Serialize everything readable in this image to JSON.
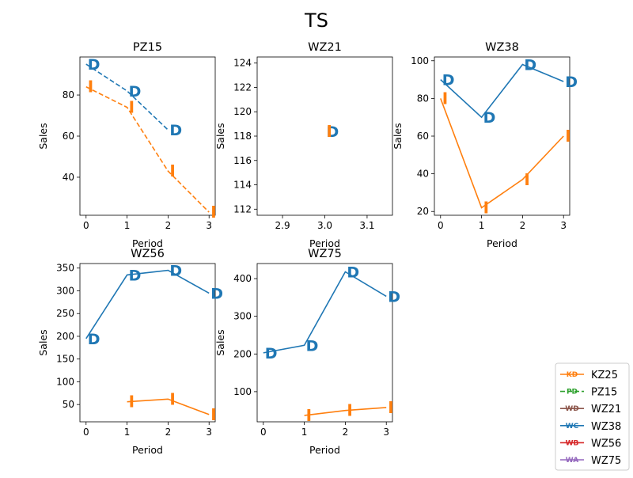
{
  "title": "TS",
  "colors": {
    "D": "#1f77b4",
    "I": "#ff7f0e"
  },
  "chart_data": [
    {
      "type": "line",
      "title": "PZ15",
      "xlabel": "Period",
      "ylabel": "Sales",
      "xlim": [
        -0.15,
        3.15
      ],
      "ylim": [
        21.5,
        98.5
      ],
      "xticks": [
        0,
        1,
        2,
        3
      ],
      "yticks": [
        40,
        60,
        80
      ],
      "line_style": "dashed",
      "series": [
        {
          "marker": "D",
          "x": [
            0,
            1,
            2
          ],
          "y": [
            95,
            82,
            63
          ]
        },
        {
          "marker": "I",
          "x": [
            0,
            1,
            2,
            3
          ],
          "y": [
            84,
            74,
            43,
            23
          ]
        }
      ]
    },
    {
      "type": "line",
      "title": "WZ21",
      "xlabel": "Period",
      "ylabel": "Sales",
      "xlim": [
        2.84,
        3.16
      ],
      "ylim": [
        111.5,
        124.5
      ],
      "xticks": [
        2.9,
        3.0,
        3.1
      ],
      "xtick_labels": [
        "2.9",
        "3.0",
        "3.1"
      ],
      "yticks": [
        112,
        114,
        116,
        118,
        120,
        122,
        124
      ],
      "line_style": "solid",
      "series": [
        {
          "marker": "D",
          "x": [
            3
          ],
          "y": [
            118.4
          ]
        },
        {
          "marker": "I",
          "x": [
            3
          ],
          "y": [
            118.4
          ]
        }
      ]
    },
    {
      "type": "line",
      "title": "WZ38",
      "xlabel": "Period",
      "ylabel": "Sales",
      "xlim": [
        -0.15,
        3.15
      ],
      "ylim": [
        18,
        102
      ],
      "xticks": [
        0,
        1,
        2,
        3
      ],
      "yticks": [
        20,
        40,
        60,
        80,
        100
      ],
      "line_style": "solid",
      "series": [
        {
          "marker": "D",
          "x": [
            0,
            1,
            2,
            3
          ],
          "y": [
            90,
            70,
            98,
            89
          ]
        },
        {
          "marker": "I",
          "x": [
            0,
            1,
            2,
            3
          ],
          "y": [
            80,
            22,
            37,
            60
          ]
        }
      ]
    },
    {
      "type": "line",
      "title": "WZ56",
      "xlabel": "Period",
      "ylabel": "Sales",
      "xlim": [
        -0.15,
        3.15
      ],
      "ylim": [
        12,
        360
      ],
      "xticks": [
        0,
        1,
        2,
        3
      ],
      "yticks": [
        50,
        100,
        150,
        200,
        250,
        300,
        350
      ],
      "line_style": "solid",
      "series": [
        {
          "marker": "D",
          "x": [
            0,
            1,
            2,
            3
          ],
          "y": [
            195,
            335,
            345,
            295
          ]
        },
        {
          "marker": "I",
          "x": [
            1,
            2,
            3
          ],
          "y": [
            56,
            62,
            28
          ]
        }
      ]
    },
    {
      "type": "line",
      "title": "WZ75",
      "xlabel": "Period",
      "ylabel": "Sales",
      "xlim": [
        -0.15,
        3.15
      ],
      "ylim": [
        20,
        440
      ],
      "xticks": [
        0,
        1,
        2,
        3
      ],
      "yticks": [
        100,
        200,
        300,
        400
      ],
      "line_style": "solid",
      "series": [
        {
          "marker": "D",
          "x": [
            0,
            1,
            2,
            3
          ],
          "y": [
            203,
            223,
            418,
            353
          ]
        },
        {
          "marker": "I",
          "x": [
            1,
            2,
            3
          ],
          "y": [
            37,
            50,
            58
          ]
        }
      ]
    }
  ],
  "legend": {
    "placement": "bottom-right",
    "entries": [
      {
        "label": "KZ25",
        "color": "#ff7f0e",
        "style": "solid",
        "icon": "KD"
      },
      {
        "label": "PZ15",
        "color": "#2ca02c",
        "style": "dashed",
        "icon": "PD"
      },
      {
        "label": "WZ21",
        "color": "#8c564b",
        "style": "solid",
        "icon": "WD"
      },
      {
        "label": "WZ38",
        "color": "#1f77b4",
        "style": "solid",
        "icon": "WC"
      },
      {
        "label": "WZ56",
        "color": "#d62728",
        "style": "solid",
        "icon": "WB"
      },
      {
        "label": "WZ75",
        "color": "#9467bd",
        "style": "solid",
        "icon": "WA"
      }
    ]
  }
}
